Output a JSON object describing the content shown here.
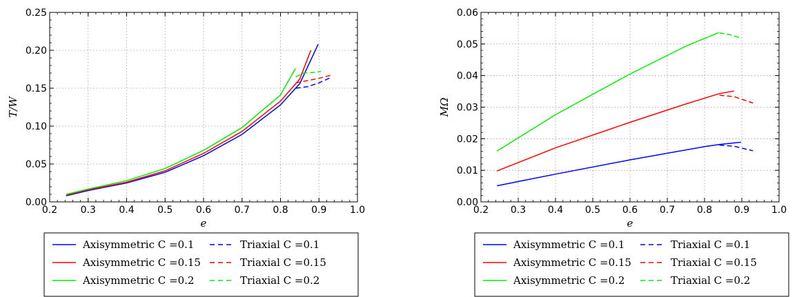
{
  "chart_data": [
    {
      "type": "line",
      "xlabel": "e",
      "ylabel": "T/W",
      "xlim": [
        0.2,
        1.0
      ],
      "ylim": [
        0.0,
        0.25
      ],
      "xticks": [
        0.2,
        0.3,
        0.4,
        0.5,
        0.6,
        0.7,
        0.8,
        0.9,
        1.0
      ],
      "xtick_labels": [
        "0.2",
        "0.3",
        "0.4",
        "0.5",
        "0.6",
        "0.7",
        "0.8",
        "0.9",
        "1.0"
      ],
      "yticks": [
        0.0,
        0.05,
        0.1,
        0.15,
        0.2,
        0.25
      ],
      "ytick_labels": [
        "0.00",
        "0.05",
        "0.10",
        "0.15",
        "0.20",
        "0.25"
      ],
      "grid": true,
      "legend_placement": "below",
      "series": [
        {
          "name": "Axisymmetric C =0.1",
          "color": "#0000ff",
          "dash": "solid",
          "x": [
            0.243,
            0.3,
            0.4,
            0.5,
            0.6,
            0.7,
            0.8,
            0.85,
            0.898
          ],
          "y": [
            0.008,
            0.015,
            0.025,
            0.039,
            0.061,
            0.089,
            0.128,
            0.156,
            0.208
          ]
        },
        {
          "name": "Axisymmetric C =0.15",
          "color": "#ff0000",
          "dash": "solid",
          "x": [
            0.243,
            0.3,
            0.4,
            0.5,
            0.6,
            0.7,
            0.8,
            0.85,
            0.879
          ],
          "y": [
            0.009,
            0.016,
            0.026,
            0.041,
            0.064,
            0.093,
            0.133,
            0.162,
            0.2
          ]
        },
        {
          "name": "Axisymmetric C =0.2",
          "color": "#00ee00",
          "dash": "solid",
          "x": [
            0.243,
            0.3,
            0.4,
            0.5,
            0.6,
            0.7,
            0.8,
            0.839
          ],
          "y": [
            0.01,
            0.017,
            0.028,
            0.044,
            0.068,
            0.098,
            0.141,
            0.176
          ]
        },
        {
          "name": "Triaxial C =0.1",
          "color": "#0000ff",
          "dash": "dashed",
          "x": [
            0.84,
            0.87,
            0.9,
            0.93
          ],
          "y": [
            0.15,
            0.152,
            0.157,
            0.164
          ]
        },
        {
          "name": "Triaxial C =0.15",
          "color": "#ff0000",
          "dash": "dashed",
          "x": [
            0.84,
            0.87,
            0.9,
            0.93
          ],
          "y": [
            0.157,
            0.16,
            0.163,
            0.167
          ]
        },
        {
          "name": "Triaxial C =0.2",
          "color": "#00ee00",
          "dash": "dashed",
          "x": [
            0.84,
            0.86,
            0.89,
            0.905
          ],
          "y": [
            0.165,
            0.17,
            0.171,
            0.172
          ]
        }
      ]
    },
    {
      "type": "line",
      "xlabel": "e",
      "ylabel": "MΩ",
      "xlim": [
        0.2,
        1.0
      ],
      "ylim": [
        0.0,
        0.06
      ],
      "xticks": [
        0.2,
        0.3,
        0.4,
        0.5,
        0.6,
        0.7,
        0.8,
        0.9,
        1.0
      ],
      "xtick_labels": [
        "0.2",
        "0.3",
        "0.4",
        "0.5",
        "0.6",
        "0.7",
        "0.8",
        "0.9",
        "1.0"
      ],
      "yticks": [
        0.0,
        0.01,
        0.02,
        0.03,
        0.04,
        0.05,
        0.06
      ],
      "ytick_labels": [
        "0.00",
        "0.01",
        "0.02",
        "0.03",
        "0.04",
        "0.05",
        "0.06"
      ],
      "grid": true,
      "legend_placement": "below",
      "series": [
        {
          "name": "Axisymmetric C =0.1",
          "color": "#0000ff",
          "dash": "solid",
          "x": [
            0.243,
            0.4,
            0.6,
            0.8,
            0.84,
            0.898
          ],
          "y": [
            0.0051,
            0.0088,
            0.0133,
            0.0175,
            0.0182,
            0.0189
          ]
        },
        {
          "name": "Axisymmetric C =0.15",
          "color": "#ff0000",
          "dash": "solid",
          "x": [
            0.243,
            0.4,
            0.6,
            0.75,
            0.84,
            0.879
          ],
          "y": [
            0.0098,
            0.0171,
            0.0252,
            0.031,
            0.0343,
            0.0351
          ]
        },
        {
          "name": "Axisymmetric C =0.2",
          "color": "#00ee00",
          "dash": "solid",
          "x": [
            0.243,
            0.4,
            0.6,
            0.75,
            0.838
          ],
          "y": [
            0.0161,
            0.0276,
            0.0405,
            0.0493,
            0.0536
          ]
        },
        {
          "name": "Triaxial C =0.1",
          "color": "#0000ff",
          "dash": "dashed",
          "x": [
            0.84,
            0.88,
            0.93
          ],
          "y": [
            0.018,
            0.0176,
            0.0162
          ]
        },
        {
          "name": "Triaxial C =0.15",
          "color": "#ff0000",
          "dash": "dashed",
          "x": [
            0.84,
            0.88,
            0.93
          ],
          "y": [
            0.0338,
            0.0333,
            0.0313
          ]
        },
        {
          "name": "Triaxial C =0.2",
          "color": "#00ee00",
          "dash": "dashed",
          "x": [
            0.84,
            0.87,
            0.9
          ],
          "y": [
            0.0535,
            0.0529,
            0.0518
          ]
        }
      ]
    }
  ]
}
